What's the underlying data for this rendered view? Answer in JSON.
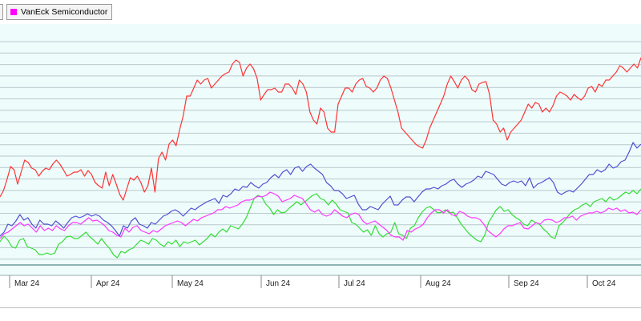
{
  "legend": {
    "items": [
      {
        "name": "VanEck Semiconductor",
        "color": "#ff00ff"
      }
    ]
  },
  "chart_data": {
    "type": "line",
    "title": "",
    "xlabel": "",
    "ylabel": "",
    "x_tick_labels": [
      "Mar 24",
      "Apr 24",
      "May 24",
      "Jun 24",
      "Jul 24",
      "Aug 24",
      "Sep 24",
      "Oct 24"
    ],
    "grid": "horizontal",
    "legend_position": "top-left",
    "series": [
      {
        "name": "",
        "color": "#ff3333",
        "values": [
          246,
          238,
          224,
          208,
          212,
          230,
          215,
          200,
          203,
          210,
          212,
          220,
          214,
          210,
          212,
          205,
          200,
          205,
          212,
          220,
          218,
          215,
          215,
          212,
          220,
          213,
          218,
          228,
          232,
          235,
          215,
          232,
          218,
          230,
          243,
          250,
          236,
          222,
          225,
          220,
          228,
          240,
          232,
          210,
          240,
          198,
          190,
          200,
          180,
          175,
          182,
          162,
          145,
          120,
          120,
          110,
          100,
          105,
          100,
          98,
          110,
          105,
          100,
          95,
          92,
          90,
          80,
          75,
          78,
          95,
          85,
          80,
          86,
          98,
          125,
          118,
          112,
          112,
          110,
          115,
          115,
          105,
          105,
          110,
          118,
          100,
          105,
          115,
          140,
          150,
          155,
          135,
          140,
          160,
          165,
          165,
          130,
          120,
          110,
          110,
          115,
          105,
          100,
          98,
          108,
          110,
          115,
          110,
          100,
          95,
          98,
          110,
          125,
          140,
          160,
          165,
          170,
          175,
          180,
          183,
          185,
          175,
          160,
          150,
          140,
          130,
          120,
          105,
          95,
          102,
          110,
          100,
          95,
          100,
          112,
          115,
          105,
          103,
          102,
          118,
          150,
          155,
          165,
          160,
          175,
          165,
          160,
          155,
          150,
          140,
          130,
          135,
          128,
          130,
          140,
          135,
          140,
          132,
          120,
          115,
          117,
          120,
          125,
          118,
          122,
          125,
          120,
          110,
          108,
          115,
          105,
          108,
          100,
          100,
          95,
          90,
          82,
          85,
          90,
          85,
          80,
          85,
          72
        ]
      },
      {
        "name": "",
        "color": "#5050d0",
        "values": [
          295,
          290,
          280,
          282,
          276,
          268,
          275,
          272,
          280,
          285,
          275,
          280,
          280,
          282,
          276,
          280,
          285,
          278,
          272,
          270,
          272,
          270,
          267,
          270,
          268,
          270,
          275,
          278,
          282,
          288,
          295,
          282,
          285,
          276,
          272,
          280,
          282,
          285,
          278,
          280,
          275,
          270,
          268,
          264,
          262,
          265,
          270,
          265,
          260,
          262,
          258,
          255,
          252,
          250,
          248,
          254,
          244,
          246,
          242,
          236,
          238,
          233,
          234,
          228,
          232,
          235,
          230,
          228,
          222,
          218,
          222,
          215,
          212,
          218,
          210,
          208,
          214,
          208,
          205,
          210,
          214,
          218,
          228,
          232,
          238,
          238,
          242,
          248,
          246,
          244,
          255,
          262,
          262,
          258,
          260,
          262,
          255,
          250,
          245,
          256,
          256,
          250,
          246,
          246,
          252,
          246,
          240,
          236,
          236,
          234,
          236,
          232,
          230,
          226,
          224,
          230,
          234,
          230,
          228,
          225,
          220,
          222,
          214,
          216,
          218,
          224,
          230,
          232,
          228,
          226,
          228,
          226,
          232,
          222,
          235,
          230,
          228,
          225,
          222,
          228,
          240,
          243,
          240,
          238,
          240,
          235,
          230,
          224,
          218,
          218,
          212,
          215,
          212,
          205,
          210,
          208,
          202,
          200,
          190,
          178,
          185,
          180
        ]
      },
      {
        "name": "",
        "color": "#33dd33",
        "values": [
          302,
          295,
          300,
          308,
          310,
          300,
          298,
          308,
          310,
          312,
          318,
          318,
          316,
          318,
          316,
          305,
          302,
          296,
          295,
          298,
          298,
          294,
          290,
          296,
          300,
          305,
          298,
          305,
          310,
          318,
          322,
          314,
          316,
          312,
          310,
          305,
          300,
          302,
          305,
          298,
          300,
          305,
          308,
          302,
          305,
          300,
          308,
          302,
          304,
          302,
          300,
          306,
          302,
          298,
          292,
          296,
          290,
          286,
          290,
          282,
          284,
          286,
          280,
          272,
          260,
          248,
          244,
          246,
          255,
          260,
          268,
          262,
          266,
          265,
          260,
          256,
          252,
          256,
          252,
          248,
          244,
          242,
          248,
          250,
          256,
          250,
          255,
          262,
          264,
          266,
          278,
          280,
          285,
          290,
          287,
          294,
          282,
          292,
          296,
          292,
          290,
          278,
          292,
          294,
          298,
          285,
          282,
          272,
          265,
          260,
          258,
          262,
          266,
          265,
          262,
          266,
          265,
          272,
          280,
          286,
          292,
          296,
          300,
          302,
          294,
          278,
          270,
          262,
          258,
          264,
          262,
          268,
          272,
          275,
          280,
          282,
          275,
          278,
          280,
          286,
          290,
          296,
          298,
          282,
          278,
          272,
          266,
          262,
          260,
          256,
          254,
          258,
          252,
          250,
          248,
          252,
          246,
          250,
          248,
          244,
          240,
          242,
          238,
          242,
          236
        ]
      },
      {
        "name": "VanEck Semiconductor",
        "color": "#ff33ff",
        "values": [
          298,
          292,
          290,
          286,
          282,
          278,
          282,
          280,
          285,
          290,
          282,
          288,
          285,
          288,
          282,
          286,
          288,
          282,
          278,
          278,
          280,
          276,
          272,
          276,
          275,
          278,
          282,
          288,
          290,
          294,
          296,
          285,
          290,
          284,
          282,
          288,
          290,
          292,
          288,
          290,
          286,
          282,
          280,
          278,
          276,
          278,
          282,
          278,
          274,
          276,
          272,
          270,
          268,
          266,
          262,
          262,
          258,
          260,
          258,
          256,
          252,
          250,
          250,
          248,
          245,
          246,
          244,
          240,
          242,
          245,
          252,
          250,
          248,
          244,
          246,
          248,
          255,
          262,
          265,
          262,
          268,
          270,
          268,
          262,
          266,
          270,
          272,
          268,
          266,
          268,
          276,
          280,
          278,
          276,
          280,
          284,
          288,
          294,
          296,
          296,
          300,
          288,
          290,
          286,
          284,
          280,
          272,
          266,
          262,
          262,
          266,
          262,
          268,
          270,
          264,
          266,
          270,
          272,
          272,
          274,
          280,
          288,
          292,
          296,
          292,
          286,
          282,
          282,
          280,
          278,
          285,
          286,
          282,
          278,
          280,
          275,
          274,
          275,
          278,
          276,
          272,
          272,
          270,
          275,
          270,
          268,
          266,
          266,
          264,
          266,
          264,
          260,
          262,
          260,
          264,
          262,
          266,
          265,
          268,
          262
        ]
      }
    ]
  }
}
